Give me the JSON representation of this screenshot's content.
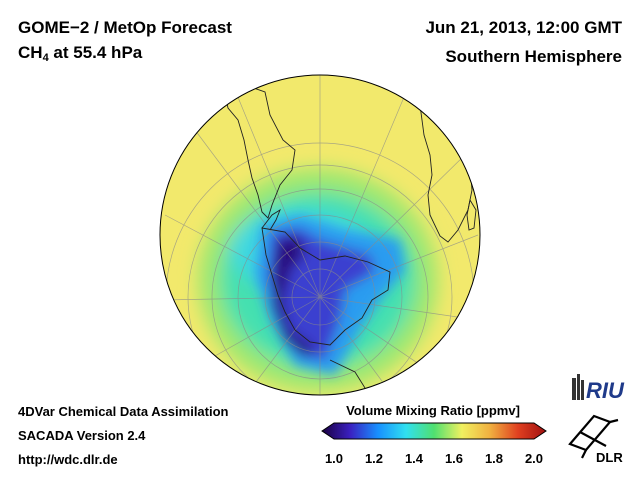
{
  "header": {
    "title": "GOME−2 / MetOp Forecast",
    "species_main": "CH",
    "species_sub": "4",
    "species_rest": " at 55.4 hPa",
    "date": "Jun 21, 2013, 12:00 GMT",
    "hemisphere": "Southern Hemisphere"
  },
  "footer": {
    "method": "4DVar Chemical Data Assimilation",
    "version": "SACADA Version 2.4",
    "url": "http://wdc.dlr.de"
  },
  "map": {
    "projection": "orthographic",
    "center_lat": -90,
    "field": "CH4 volume mixing ratio"
  },
  "colorbar": {
    "title": "Volume Mixing Ratio [ppmv]",
    "min": 1.0,
    "max": 2.0,
    "tick_labels": [
      "1.0",
      "1.2",
      "1.4",
      "1.6",
      "1.8",
      "2.0"
    ],
    "colors": [
      "#1a0040",
      "#3a20c0",
      "#1890ff",
      "#30e0f0",
      "#50e070",
      "#f0f060",
      "#f0b040",
      "#e04020",
      "#a01010"
    ]
  },
  "logos": {
    "riu": "RIU",
    "dlr": "DLR"
  }
}
